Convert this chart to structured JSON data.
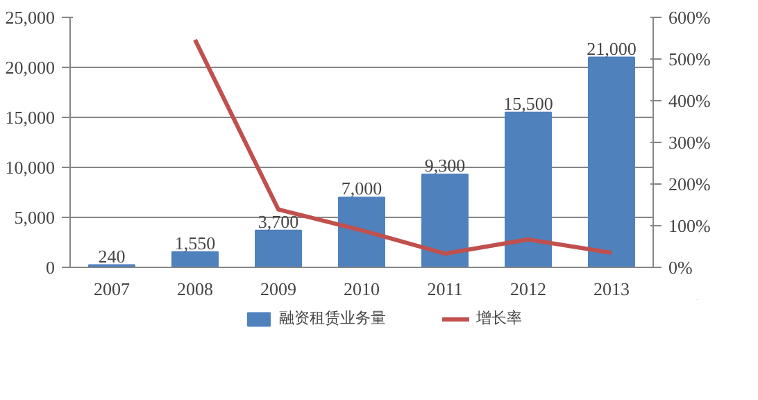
{
  "chart_data": {
    "type": "bar",
    "categories": [
      "2007",
      "2008",
      "2009",
      "2010",
      "2011",
      "2012",
      "2013"
    ],
    "series": [
      {
        "name": "融资租赁业务量",
        "color": "#4f81bd",
        "values": [
          240,
          1550,
          3700,
          7000,
          9300,
          15500,
          21000
        ],
        "value_labels": [
          "240",
          "1,550",
          "3,700",
          "7,000",
          "9,300",
          "15,500",
          "21,000"
        ]
      },
      {
        "name": "增长率",
        "type": "line",
        "axis": "y2",
        "color": "#c0504d",
        "values": [
          null,
          546,
          139,
          89,
          33,
          67,
          35
        ]
      }
    ],
    "ylim": [
      0,
      25000
    ],
    "yticks": [
      0,
      {
        "value": 5000,
        "label": "5,000"
      },
      {
        "value": 10000,
        "label": "10,000"
      },
      {
        "value": 15000,
        "label": "15,000"
      },
      {
        "value": 20000,
        "label": "20,000"
      },
      {
        "value": 25000,
        "label": "25,000"
      }
    ],
    "y2lim": [
      0,
      600
    ],
    "y2ticks": [
      {
        "value": 0,
        "label": "0%"
      },
      {
        "value": 100,
        "label": "100%"
      },
      {
        "value": 200,
        "label": "200%"
      },
      {
        "value": 300,
        "label": "300%"
      },
      {
        "value": 400,
        "label": "400%"
      },
      {
        "value": 500,
        "label": "500%"
      },
      {
        "value": 600,
        "label": "600%"
      }
    ],
    "grid": "y",
    "legend": "bottom",
    "marker": "none",
    "line_style": "solid"
  }
}
